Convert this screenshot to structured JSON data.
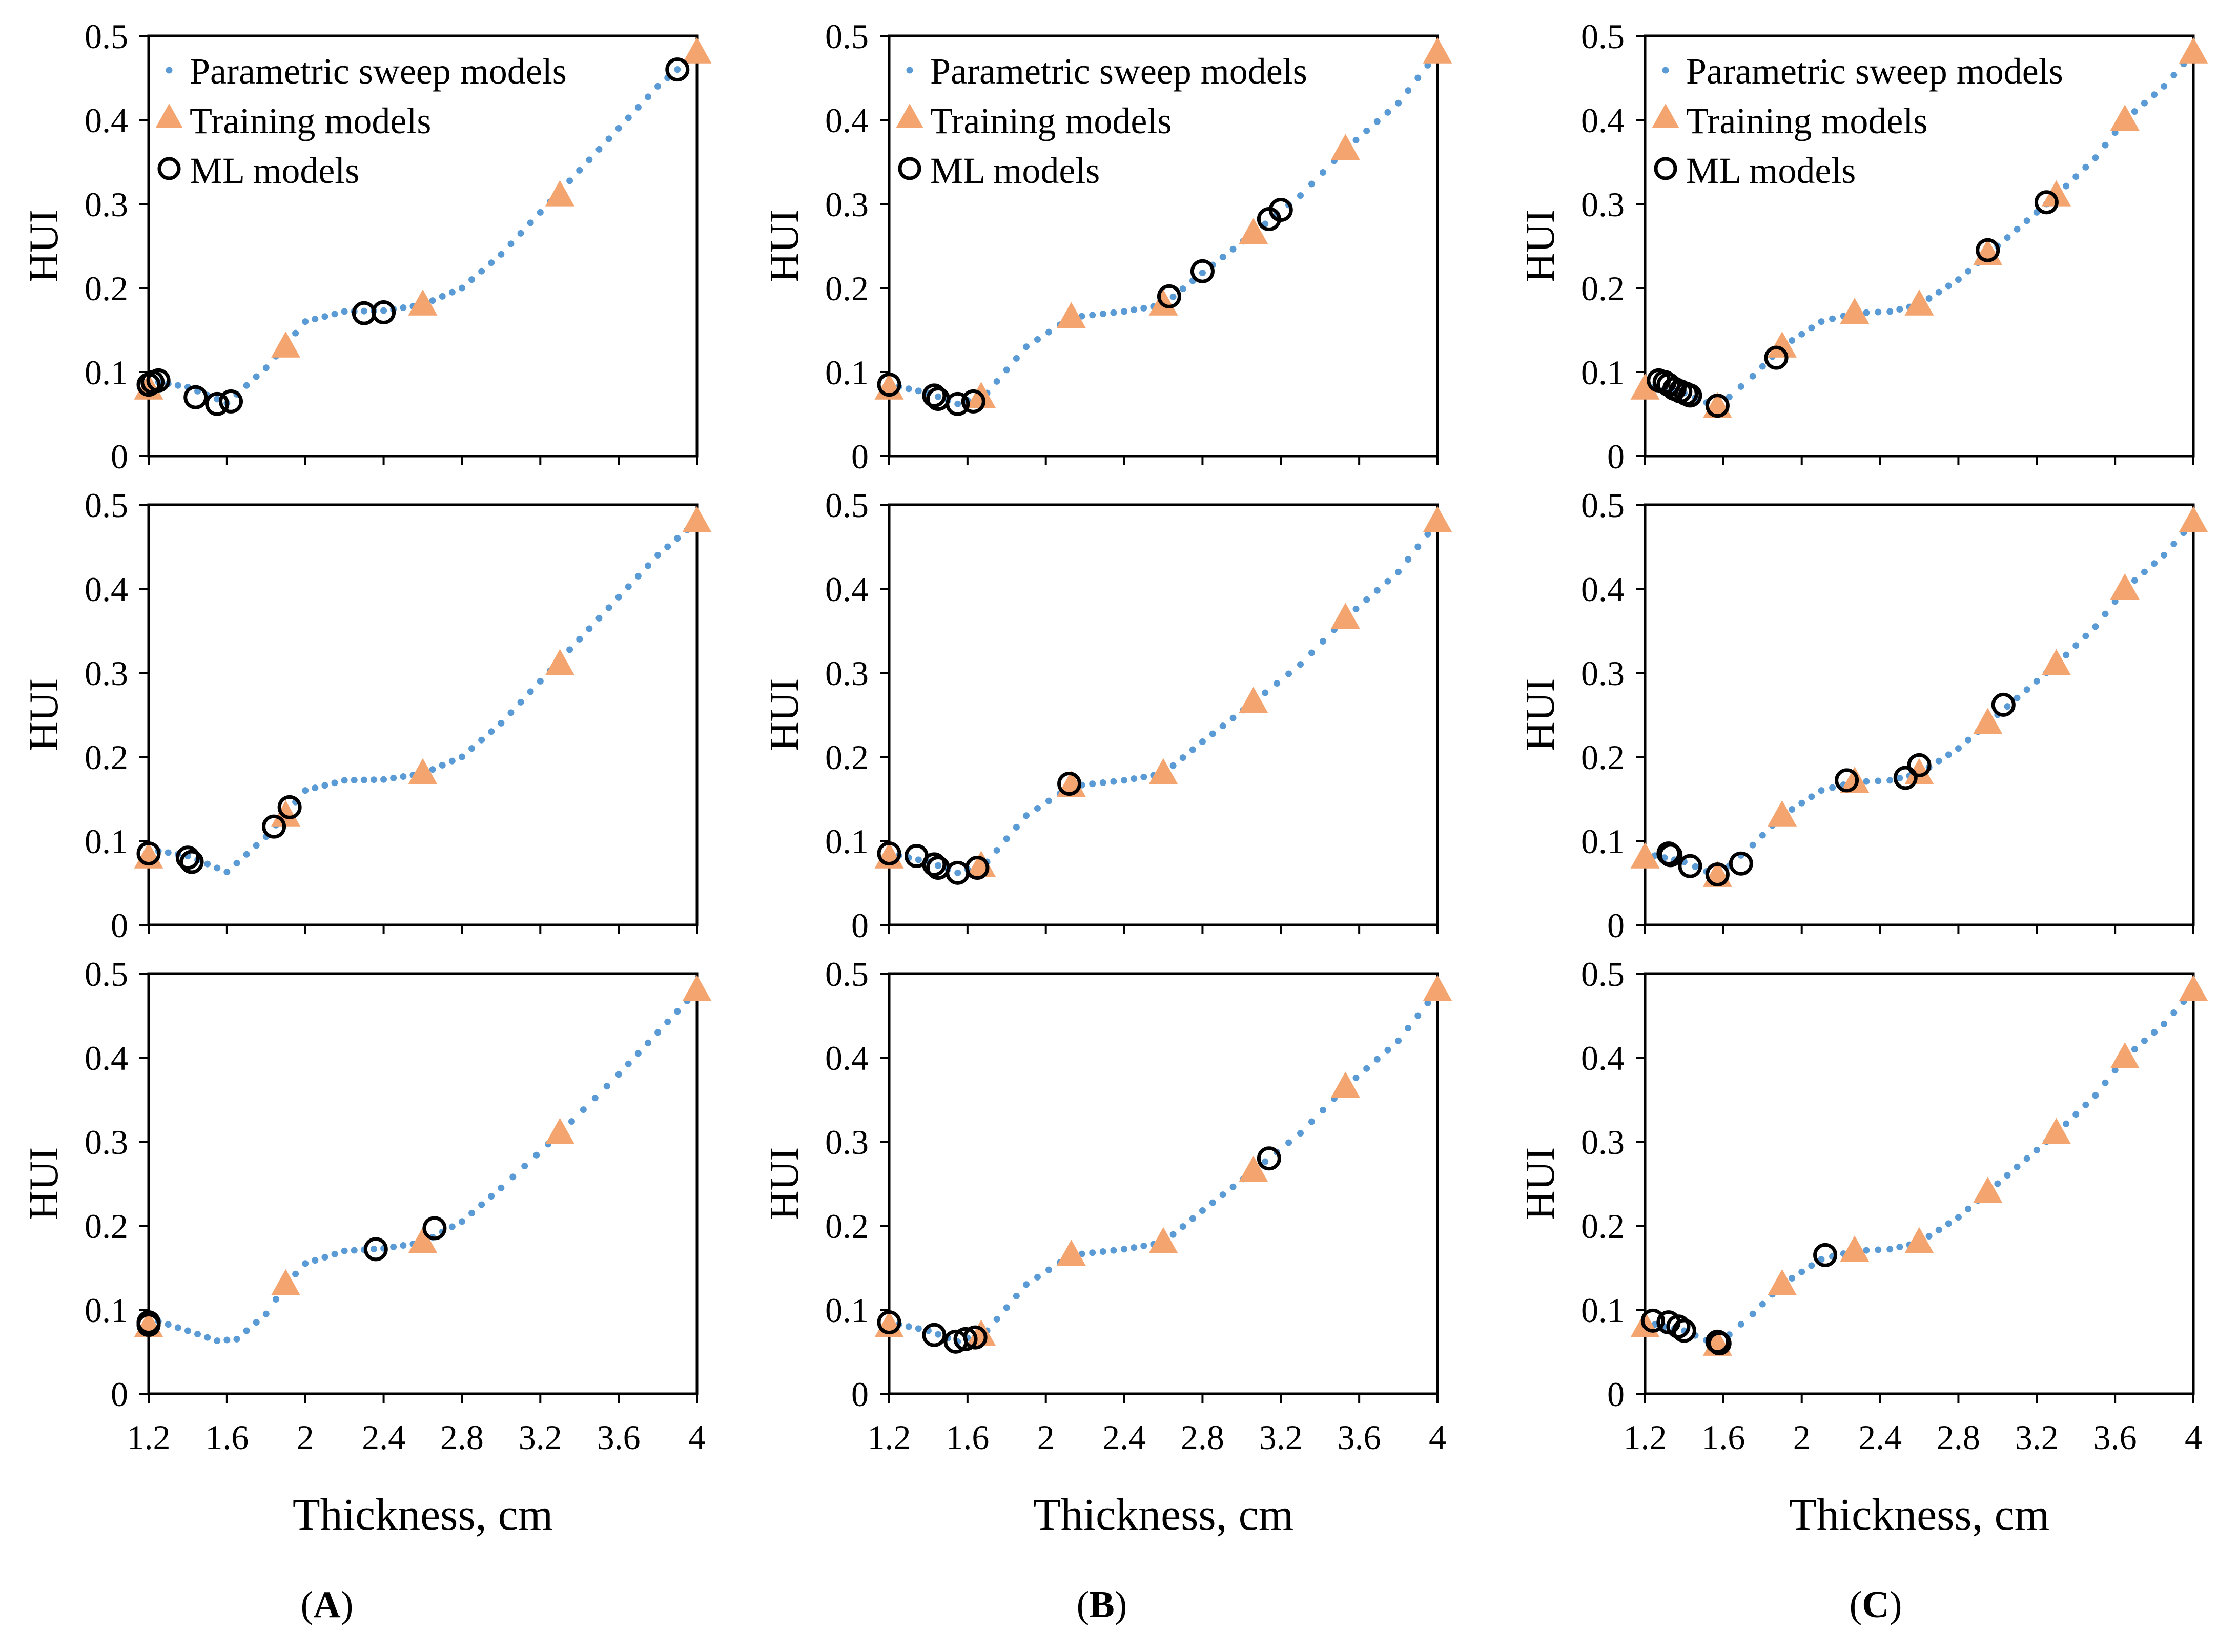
{
  "figure": {
    "column_labels": [
      "A",
      "B",
      "C"
    ],
    "legend": {
      "sweep": "Parametric sweep models",
      "training": "Training models",
      "ml": "ML models"
    },
    "ylabel": "HUI",
    "xlabel": "Thickness, cm",
    "x_ticks": [
      "1.2",
      "1.6",
      "2",
      "2.4",
      "2.8",
      "3.2",
      "3.6",
      "4"
    ],
    "y_ticks": [
      "0",
      "0.1",
      "0.2",
      "0.3",
      "0.4",
      "0.5"
    ],
    "colors": {
      "sweep": "#5b9bd5",
      "training": "#f4a46f",
      "ml": "#000000"
    }
  },
  "chart_data": [
    {
      "type": "scatter",
      "col": 0,
      "row": 0,
      "legend": true,
      "xlabel_shown": false,
      "xlim": [
        1.2,
        4.0
      ],
      "ylim": [
        0,
        0.5
      ],
      "curve": [
        [
          1.2,
          0.09
        ],
        [
          1.4,
          0.082
        ],
        [
          1.6,
          0.063
        ],
        [
          1.8,
          0.105
        ],
        [
          2.0,
          0.16
        ],
        [
          2.2,
          0.172
        ],
        [
          2.4,
          0.173
        ],
        [
          2.6,
          0.18
        ],
        [
          2.8,
          0.2
        ],
        [
          3.0,
          0.24
        ],
        [
          3.2,
          0.29
        ],
        [
          3.4,
          0.34
        ],
        [
          3.6,
          0.39
        ],
        [
          3.8,
          0.44
        ],
        [
          4.0,
          0.48
        ]
      ],
      "training": [
        [
          1.2,
          0.08
        ],
        [
          1.9,
          0.13
        ],
        [
          2.6,
          0.18
        ],
        [
          3.3,
          0.31
        ],
        [
          4.0,
          0.48
        ]
      ],
      "ml": [
        [
          1.2,
          0.085
        ],
        [
          1.22,
          0.088
        ],
        [
          1.25,
          0.09
        ],
        [
          1.44,
          0.07
        ],
        [
          1.55,
          0.062
        ],
        [
          1.62,
          0.065
        ],
        [
          2.3,
          0.17
        ],
        [
          2.4,
          0.171
        ],
        [
          3.9,
          0.46
        ]
      ]
    },
    {
      "type": "scatter",
      "col": 1,
      "row": 0,
      "legend": true,
      "xlabel_shown": false,
      "xlim": [
        1.2,
        4.0
      ],
      "ylim": [
        0,
        0.5
      ],
      "curve": [
        [
          1.2,
          0.085
        ],
        [
          1.4,
          0.075
        ],
        [
          1.55,
          0.062
        ],
        [
          1.7,
          0.075
        ],
        [
          1.9,
          0.13
        ],
        [
          2.13,
          0.165
        ],
        [
          2.4,
          0.172
        ],
        [
          2.6,
          0.18
        ],
        [
          2.8,
          0.218
        ],
        [
          3.06,
          0.265
        ],
        [
          3.3,
          0.31
        ],
        [
          3.53,
          0.365
        ],
        [
          3.8,
          0.42
        ],
        [
          4.0,
          0.48
        ]
      ],
      "training": [
        [
          1.2,
          0.08
        ],
        [
          1.67,
          0.07
        ],
        [
          2.13,
          0.165
        ],
        [
          2.6,
          0.18
        ],
        [
          3.06,
          0.265
        ],
        [
          3.53,
          0.365
        ],
        [
          4.0,
          0.48
        ]
      ],
      "ml": [
        [
          1.2,
          0.085
        ],
        [
          1.43,
          0.072
        ],
        [
          1.45,
          0.068
        ],
        [
          1.55,
          0.062
        ],
        [
          1.63,
          0.065
        ],
        [
          2.63,
          0.19
        ],
        [
          2.8,
          0.22
        ],
        [
          3.14,
          0.282
        ],
        [
          3.2,
          0.293
        ]
      ]
    },
    {
      "type": "scatter",
      "col": 2,
      "row": 0,
      "legend": true,
      "xlabel_shown": false,
      "xlim": [
        1.2,
        4.0
      ],
      "ylim": [
        0,
        0.5
      ],
      "curve": [
        [
          1.2,
          0.085
        ],
        [
          1.4,
          0.075
        ],
        [
          1.57,
          0.058
        ],
        [
          1.75,
          0.095
        ],
        [
          1.9,
          0.13
        ],
        [
          2.1,
          0.16
        ],
        [
          2.27,
          0.17
        ],
        [
          2.45,
          0.172
        ],
        [
          2.6,
          0.18
        ],
        [
          2.8,
          0.21
        ],
        [
          2.95,
          0.24
        ],
        [
          3.1,
          0.27
        ],
        [
          3.3,
          0.31
        ],
        [
          3.5,
          0.355
        ],
        [
          3.65,
          0.4
        ],
        [
          3.85,
          0.44
        ],
        [
          4.0,
          0.48
        ]
      ],
      "training": [
        [
          1.2,
          0.08
        ],
        [
          1.57,
          0.058
        ],
        [
          1.9,
          0.13
        ],
        [
          2.27,
          0.17
        ],
        [
          2.6,
          0.18
        ],
        [
          2.95,
          0.24
        ],
        [
          3.3,
          0.31
        ],
        [
          3.65,
          0.4
        ],
        [
          4.0,
          0.48
        ]
      ],
      "ml": [
        [
          1.27,
          0.09
        ],
        [
          1.3,
          0.088
        ],
        [
          1.32,
          0.085
        ],
        [
          1.35,
          0.08
        ],
        [
          1.38,
          0.077
        ],
        [
          1.41,
          0.074
        ],
        [
          1.43,
          0.072
        ],
        [
          1.57,
          0.06
        ],
        [
          1.87,
          0.117
        ],
        [
          2.95,
          0.245
        ],
        [
          3.25,
          0.302
        ]
      ]
    },
    {
      "type": "scatter",
      "col": 0,
      "row": 1,
      "legend": false,
      "xlabel_shown": false,
      "xlim": [
        1.2,
        4.0
      ],
      "ylim": [
        0,
        0.5
      ],
      "curve": [
        [
          1.2,
          0.09
        ],
        [
          1.4,
          0.082
        ],
        [
          1.6,
          0.063
        ],
        [
          1.8,
          0.105
        ],
        [
          2.0,
          0.16
        ],
        [
          2.2,
          0.172
        ],
        [
          2.4,
          0.173
        ],
        [
          2.6,
          0.18
        ],
        [
          2.8,
          0.2
        ],
        [
          3.0,
          0.24
        ],
        [
          3.2,
          0.29
        ],
        [
          3.4,
          0.34
        ],
        [
          3.6,
          0.39
        ],
        [
          3.8,
          0.44
        ],
        [
          4.0,
          0.48
        ]
      ],
      "training": [
        [
          1.2,
          0.08
        ],
        [
          1.9,
          0.13
        ],
        [
          2.6,
          0.18
        ],
        [
          3.3,
          0.31
        ],
        [
          4.0,
          0.48
        ]
      ],
      "ml": [
        [
          1.2,
          0.085
        ],
        [
          1.4,
          0.08
        ],
        [
          1.42,
          0.075
        ],
        [
          1.84,
          0.117
        ],
        [
          1.92,
          0.14
        ]
      ]
    },
    {
      "type": "scatter",
      "col": 1,
      "row": 1,
      "legend": false,
      "xlabel_shown": false,
      "xlim": [
        1.2,
        4.0
      ],
      "ylim": [
        0,
        0.5
      ],
      "curve": [
        [
          1.2,
          0.085
        ],
        [
          1.4,
          0.075
        ],
        [
          1.55,
          0.062
        ],
        [
          1.7,
          0.075
        ],
        [
          1.9,
          0.13
        ],
        [
          2.13,
          0.165
        ],
        [
          2.4,
          0.172
        ],
        [
          2.6,
          0.18
        ],
        [
          2.8,
          0.218
        ],
        [
          3.06,
          0.265
        ],
        [
          3.3,
          0.31
        ],
        [
          3.53,
          0.365
        ],
        [
          3.8,
          0.42
        ],
        [
          4.0,
          0.48
        ]
      ],
      "training": [
        [
          1.2,
          0.08
        ],
        [
          1.67,
          0.07
        ],
        [
          2.13,
          0.165
        ],
        [
          2.6,
          0.18
        ],
        [
          3.06,
          0.265
        ],
        [
          3.53,
          0.365
        ],
        [
          4.0,
          0.48
        ]
      ],
      "ml": [
        [
          1.2,
          0.085
        ],
        [
          1.34,
          0.082
        ],
        [
          1.43,
          0.072
        ],
        [
          1.45,
          0.068
        ],
        [
          1.55,
          0.062
        ],
        [
          1.65,
          0.068
        ],
        [
          2.12,
          0.168
        ]
      ]
    },
    {
      "type": "scatter",
      "col": 2,
      "row": 1,
      "legend": false,
      "xlabel_shown": false,
      "xlim": [
        1.2,
        4.0
      ],
      "ylim": [
        0,
        0.5
      ],
      "curve": [
        [
          1.2,
          0.085
        ],
        [
          1.4,
          0.075
        ],
        [
          1.57,
          0.058
        ],
        [
          1.75,
          0.095
        ],
        [
          1.9,
          0.13
        ],
        [
          2.1,
          0.16
        ],
        [
          2.27,
          0.17
        ],
        [
          2.45,
          0.172
        ],
        [
          2.6,
          0.18
        ],
        [
          2.8,
          0.21
        ],
        [
          2.95,
          0.24
        ],
        [
          3.1,
          0.27
        ],
        [
          3.3,
          0.31
        ],
        [
          3.5,
          0.355
        ],
        [
          3.65,
          0.4
        ],
        [
          3.85,
          0.44
        ],
        [
          4.0,
          0.48
        ]
      ],
      "training": [
        [
          1.2,
          0.08
        ],
        [
          1.57,
          0.058
        ],
        [
          1.9,
          0.13
        ],
        [
          2.27,
          0.17
        ],
        [
          2.6,
          0.18
        ],
        [
          2.95,
          0.24
        ],
        [
          3.3,
          0.31
        ],
        [
          3.65,
          0.4
        ],
        [
          4.0,
          0.48
        ]
      ],
      "ml": [
        [
          1.32,
          0.085
        ],
        [
          1.33,
          0.083
        ],
        [
          1.43,
          0.07
        ],
        [
          1.57,
          0.06
        ],
        [
          1.69,
          0.073
        ],
        [
          2.23,
          0.172
        ],
        [
          2.53,
          0.175
        ],
        [
          2.6,
          0.19
        ],
        [
          3.03,
          0.262
        ]
      ]
    },
    {
      "type": "scatter",
      "col": 0,
      "row": 2,
      "legend": false,
      "xlabel_shown": true,
      "xlim": [
        1.2,
        4.0
      ],
      "ylim": [
        0,
        0.5
      ],
      "curve": [
        [
          1.2,
          0.09
        ],
        [
          1.4,
          0.075
        ],
        [
          1.55,
          0.063
        ],
        [
          1.65,
          0.065
        ],
        [
          1.8,
          0.095
        ],
        [
          1.9,
          0.13
        ],
        [
          2.0,
          0.155
        ],
        [
          2.2,
          0.17
        ],
        [
          2.4,
          0.173
        ],
        [
          2.6,
          0.18
        ],
        [
          2.8,
          0.205
        ],
        [
          3.0,
          0.245
        ],
        [
          3.3,
          0.31
        ],
        [
          3.6,
          0.38
        ],
        [
          3.8,
          0.43
        ],
        [
          4.0,
          0.48
        ]
      ],
      "training": [
        [
          1.2,
          0.08
        ],
        [
          1.9,
          0.13
        ],
        [
          2.6,
          0.18
        ],
        [
          3.3,
          0.31
        ],
        [
          4.0,
          0.48
        ]
      ],
      "ml": [
        [
          1.2,
          0.085
        ],
        [
          1.2,
          0.082
        ],
        [
          2.36,
          0.172
        ],
        [
          2.66,
          0.197
        ]
      ]
    },
    {
      "type": "scatter",
      "col": 1,
      "row": 2,
      "legend": false,
      "xlabel_shown": true,
      "xlim": [
        1.2,
        4.0
      ],
      "ylim": [
        0,
        0.5
      ],
      "curve": [
        [
          1.2,
          0.085
        ],
        [
          1.4,
          0.075
        ],
        [
          1.55,
          0.062
        ],
        [
          1.7,
          0.075
        ],
        [
          1.9,
          0.13
        ],
        [
          2.13,
          0.165
        ],
        [
          2.4,
          0.172
        ],
        [
          2.6,
          0.18
        ],
        [
          2.8,
          0.218
        ],
        [
          3.06,
          0.265
        ],
        [
          3.3,
          0.31
        ],
        [
          3.53,
          0.365
        ],
        [
          3.8,
          0.42
        ],
        [
          4.0,
          0.48
        ]
      ],
      "training": [
        [
          1.2,
          0.08
        ],
        [
          1.67,
          0.07
        ],
        [
          2.13,
          0.165
        ],
        [
          2.6,
          0.18
        ],
        [
          3.06,
          0.265
        ],
        [
          3.53,
          0.365
        ],
        [
          4.0,
          0.48
        ]
      ],
      "ml": [
        [
          1.2,
          0.085
        ],
        [
          1.43,
          0.07
        ],
        [
          1.54,
          0.062
        ],
        [
          1.59,
          0.065
        ],
        [
          1.64,
          0.067
        ],
        [
          3.14,
          0.28
        ]
      ]
    },
    {
      "type": "scatter",
      "col": 2,
      "row": 2,
      "legend": false,
      "xlabel_shown": true,
      "xlim": [
        1.2,
        4.0
      ],
      "ylim": [
        0,
        0.5
      ],
      "curve": [
        [
          1.2,
          0.085
        ],
        [
          1.4,
          0.075
        ],
        [
          1.57,
          0.058
        ],
        [
          1.75,
          0.095
        ],
        [
          1.9,
          0.13
        ],
        [
          2.1,
          0.16
        ],
        [
          2.27,
          0.17
        ],
        [
          2.45,
          0.172
        ],
        [
          2.6,
          0.18
        ],
        [
          2.8,
          0.21
        ],
        [
          2.95,
          0.24
        ],
        [
          3.1,
          0.27
        ],
        [
          3.3,
          0.31
        ],
        [
          3.5,
          0.355
        ],
        [
          3.65,
          0.4
        ],
        [
          3.85,
          0.44
        ],
        [
          4.0,
          0.48
        ]
      ],
      "training": [
        [
          1.2,
          0.08
        ],
        [
          1.57,
          0.058
        ],
        [
          1.9,
          0.13
        ],
        [
          2.27,
          0.17
        ],
        [
          2.6,
          0.18
        ],
        [
          2.95,
          0.24
        ],
        [
          3.3,
          0.31
        ],
        [
          3.65,
          0.4
        ],
        [
          4.0,
          0.48
        ]
      ],
      "ml": [
        [
          1.24,
          0.087
        ],
        [
          1.32,
          0.085
        ],
        [
          1.37,
          0.08
        ],
        [
          1.4,
          0.075
        ],
        [
          1.57,
          0.062
        ],
        [
          1.58,
          0.06
        ],
        [
          2.12,
          0.165
        ]
      ]
    }
  ]
}
